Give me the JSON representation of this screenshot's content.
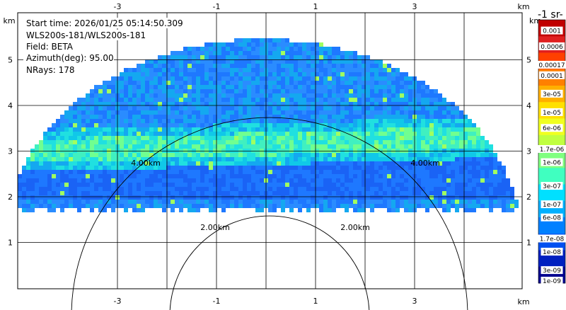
{
  "info": {
    "start_time": "Start time: 2026/01/25 05:14:50.309",
    "instrument": "WLS200s-181/WLS200s-181",
    "field": "Field: BETA",
    "azimuth": "Azimuth(deg): 95.00",
    "nrays": "NRays: 178"
  },
  "chart_data": {
    "type": "heatmap",
    "description_type": "RHI lidar scan",
    "x_ticks": [
      "-3",
      "-1",
      "1",
      "3"
    ],
    "x_tick_values": [
      -3,
      -1,
      1,
      3
    ],
    "y_ticks": [
      "1",
      "2",
      "3",
      "4",
      "5"
    ],
    "y_tick_values": [
      1,
      2,
      3,
      4,
      5
    ],
    "x_unit": "km",
    "y_unit": "km",
    "xlim": [
      -5.7,
      4.1
    ],
    "ylim": [
      0,
      6.3
    ],
    "range_rings": [
      {
        "radius_km": 2,
        "label": "2.00km"
      },
      {
        "radius_km": 4,
        "label": "4.00km"
      }
    ],
    "colorbar": {
      "title": "-1 sr-",
      "labels": [
        "0.001",
        "0.0006",
        "0.00017",
        "0.0001",
        "3e-05",
        "1e-05",
        "6e-06",
        "1.7e-06",
        "1e-06",
        "3e-07",
        "1e-07",
        "6e-08",
        "1.7e-08",
        "1e-08",
        "3e-09",
        "1e-09"
      ],
      "label_positions": [
        0.05,
        0.11,
        0.18,
        0.22,
        0.29,
        0.36,
        0.42,
        0.5,
        0.55,
        0.64,
        0.71,
        0.76,
        0.84,
        0.89,
        0.96,
        1.0
      ],
      "colors": [
        "#c00000",
        "#e02020",
        "#ff4000",
        "#ff8000",
        "#ffb000",
        "#ffe000",
        "#f0ff20",
        "#c0ff40",
        "#80ff80",
        "#40ffc0",
        "#00e0ff",
        "#00b0ff",
        "#0080ff",
        "#0050f0",
        "#0020c0",
        "#000090"
      ]
    },
    "data_layers": [
      {
        "name": "band",
        "y_center_km": 3.0,
        "thickness_km": 0.7,
        "level": 0.55
      },
      {
        "name": "background",
        "level": 0.2
      }
    ]
  },
  "colors": {
    "background": "#ffffff",
    "grid": "#000000"
  }
}
